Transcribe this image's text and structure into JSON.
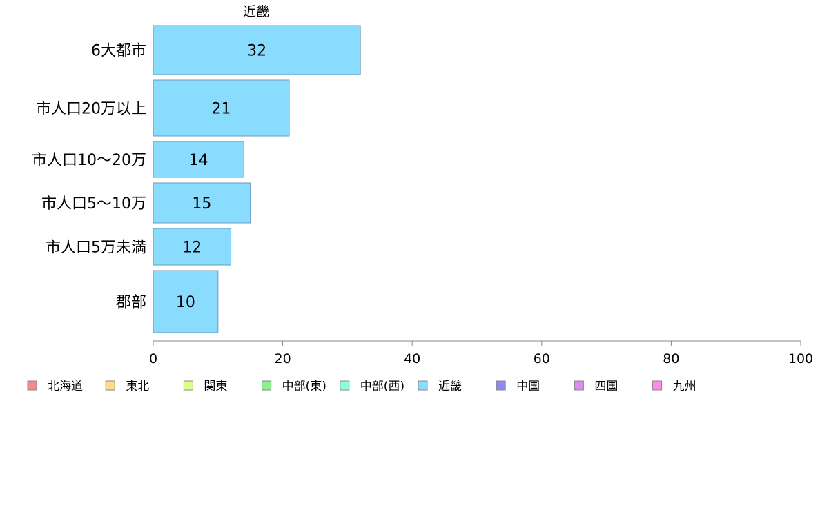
{
  "chart_data": {
    "type": "bar",
    "orientation": "horizontal",
    "title": "近畿",
    "categories": [
      "6大都市",
      "市人口20万以上",
      "市人口10〜20万",
      "市人口5〜10万",
      "市人口5万未満",
      "郡部"
    ],
    "series": [
      {
        "name": "近畿",
        "values": [
          32,
          21,
          14,
          15,
          12,
          10
        ],
        "color": "#8adcff"
      }
    ],
    "xlim": [
      0,
      100
    ],
    "xticks": [
      0,
      20,
      40,
      60,
      80,
      100
    ],
    "grid": false,
    "data_labels": true,
    "legend": {
      "placement": "bottom-left",
      "items": [
        {
          "name": "北海道",
          "color": "#f08c8c"
        },
        {
          "name": "東北",
          "color": "#ffdc8c"
        },
        {
          "name": "関東",
          "color": "#dcff8c"
        },
        {
          "name": "中部(東)",
          "color": "#8cf08c"
        },
        {
          "name": "中部(西)",
          "color": "#8cffdc"
        },
        {
          "name": "近畿",
          "color": "#8adcff"
        },
        {
          "name": "中国",
          "color": "#8c8cf0"
        },
        {
          "name": "四国",
          "color": "#dc8cf0"
        },
        {
          "name": "九州",
          "color": "#ff8cdc"
        }
      ]
    }
  }
}
